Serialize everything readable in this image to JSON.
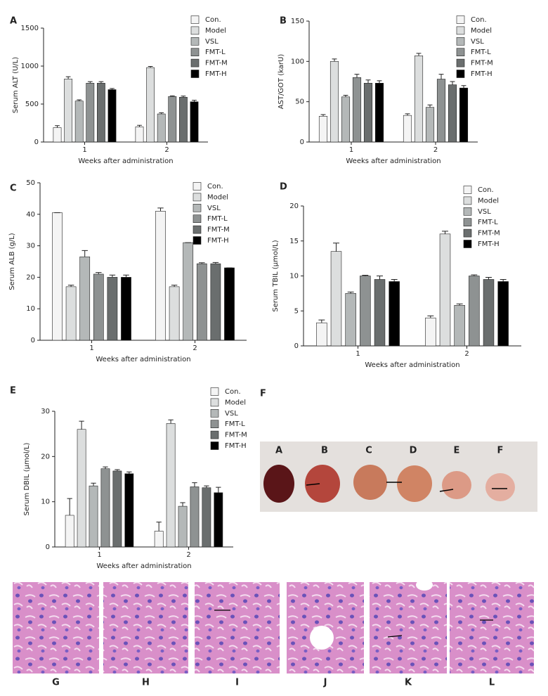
{
  "chart_data": [
    {
      "type": "bar",
      "panel": "A",
      "ylabel": "Serum ALT (U/L)",
      "xlabel": "Weeks after administration",
      "categories": [
        "1",
        "2"
      ],
      "ylim": [
        0,
        1500
      ],
      "yticks": [
        0,
        500,
        1000,
        1500
      ],
      "series": [
        {
          "name": "Con.",
          "color": "#f4f4f4",
          "values": [
            190,
            200
          ],
          "errors": [
            25,
            20
          ]
        },
        {
          "name": "Model",
          "color": "#dcdede",
          "values": [
            830,
            980
          ],
          "errors": [
            30,
            15
          ]
        },
        {
          "name": "VSL",
          "color": "#b4b8b8",
          "values": [
            540,
            370
          ],
          "errors": [
            15,
            15
          ]
        },
        {
          "name": "FMT-L",
          "color": "#8e9292",
          "values": [
            775,
            600
          ],
          "errors": [
            20,
            8
          ]
        },
        {
          "name": "FMT-M",
          "color": "#6a6e6e",
          "values": [
            775,
            590
          ],
          "errors": [
            20,
            15
          ]
        },
        {
          "name": "FMT-H",
          "color": "#000000",
          "values": [
            690,
            530
          ],
          "errors": [
            15,
            20
          ]
        }
      ]
    },
    {
      "type": "bar",
      "panel": "B",
      "ylabel": "AST/GOT (karU)",
      "xlabel": "Weeks after administration",
      "categories": [
        "1",
        "2"
      ],
      "ylim": [
        0,
        150
      ],
      "yticks": [
        0,
        50,
        100,
        150
      ],
      "series": [
        {
          "name": "Con.",
          "color": "#f4f4f4",
          "values": [
            32,
            33
          ],
          "errors": [
            2,
            2
          ]
        },
        {
          "name": "Model",
          "color": "#dcdede",
          "values": [
            100,
            107
          ],
          "errors": [
            3,
            3
          ]
        },
        {
          "name": "VSL",
          "color": "#b4b8b8",
          "values": [
            56,
            43
          ],
          "errors": [
            2,
            3
          ]
        },
        {
          "name": "FMT-L",
          "color": "#8e9292",
          "values": [
            80,
            78
          ],
          "errors": [
            4,
            6
          ]
        },
        {
          "name": "FMT-M",
          "color": "#6a6e6e",
          "values": [
            73,
            71
          ],
          "errors": [
            4,
            4
          ]
        },
        {
          "name": "FMT-H",
          "color": "#000000",
          "values": [
            73,
            67
          ],
          "errors": [
            3,
            3
          ]
        }
      ]
    },
    {
      "type": "bar",
      "panel": "C",
      "ylabel": "Serum ALB (g/L)",
      "xlabel": "Weeks after administration",
      "categories": [
        "1",
        "2"
      ],
      "ylim": [
        0,
        50
      ],
      "yticks": [
        0,
        10,
        20,
        30,
        40,
        50
      ],
      "series": [
        {
          "name": "Con.",
          "color": "#f4f4f4",
          "values": [
            40.5,
            41
          ],
          "errors": [
            0,
            1
          ]
        },
        {
          "name": "Model",
          "color": "#dcdede",
          "values": [
            17,
            17
          ],
          "errors": [
            0.5,
            0.5
          ]
        },
        {
          "name": "VSL",
          "color": "#b4b8b8",
          "values": [
            26.5,
            31
          ],
          "errors": [
            2,
            0
          ]
        },
        {
          "name": "FMT-L",
          "color": "#8e9292",
          "values": [
            21,
            24.3
          ],
          "errors": [
            0.5,
            0.3
          ]
        },
        {
          "name": "FMT-M",
          "color": "#6a6e6e",
          "values": [
            20,
            24.3
          ],
          "errors": [
            0.7,
            0.4
          ]
        },
        {
          "name": "FMT-H",
          "color": "#000000",
          "values": [
            20,
            23
          ],
          "errors": [
            0.7,
            0
          ]
        }
      ]
    },
    {
      "type": "bar",
      "panel": "D",
      "ylabel": "Serum TBIL (μmol/L)",
      "xlabel": "Weeks after administration",
      "categories": [
        "1",
        "2"
      ],
      "ylim": [
        0,
        20
      ],
      "yticks": [
        0,
        5,
        10,
        15,
        20
      ],
      "series": [
        {
          "name": "Con.",
          "color": "#f4f4f4",
          "values": [
            3.3,
            4
          ],
          "errors": [
            0.4,
            0.3
          ]
        },
        {
          "name": "Model",
          "color": "#dcdede",
          "values": [
            13.5,
            16
          ],
          "errors": [
            1.2,
            0.4
          ]
        },
        {
          "name": "VSL",
          "color": "#b4b8b8",
          "values": [
            7.5,
            5.8
          ],
          "errors": [
            0.2,
            0.2
          ]
        },
        {
          "name": "FMT-L",
          "color": "#8e9292",
          "values": [
            10,
            10
          ],
          "errors": [
            0.1,
            0.15
          ]
        },
        {
          "name": "FMT-M",
          "color": "#6a6e6e",
          "values": [
            9.5,
            9.5
          ],
          "errors": [
            0.5,
            0.3
          ]
        },
        {
          "name": "FMT-H",
          "color": "#000000",
          "values": [
            9.2,
            9.2
          ],
          "errors": [
            0.3,
            0.3
          ]
        }
      ]
    },
    {
      "type": "bar",
      "panel": "E",
      "ylabel": "Serum DBIL (μmol/L)",
      "xlabel": "Weeks after administration",
      "categories": [
        "1",
        "2"
      ],
      "ylim": [
        0,
        30
      ],
      "yticks": [
        0,
        10,
        20,
        30
      ],
      "series": [
        {
          "name": "Con.",
          "color": "#f4f4f4",
          "values": [
            7,
            3.5
          ],
          "errors": [
            3.7,
            2
          ]
        },
        {
          "name": "Model",
          "color": "#dcdede",
          "values": [
            26,
            27.3
          ],
          "errors": [
            1.8,
            0.8
          ]
        },
        {
          "name": "VSL",
          "color": "#b4b8b8",
          "values": [
            13.5,
            9
          ],
          "errors": [
            0.6,
            0.8
          ]
        },
        {
          "name": "FMT-L",
          "color": "#8e9292",
          "values": [
            17.3,
            13.3
          ],
          "errors": [
            0.4,
            0.9
          ]
        },
        {
          "name": "FMT-M",
          "color": "#6a6e6e",
          "values": [
            16.8,
            13.1
          ],
          "errors": [
            0.3,
            0.4
          ]
        },
        {
          "name": "FMT-H",
          "color": "#000000",
          "values": [
            16.2,
            12
          ],
          "errors": [
            0.4,
            1.2
          ]
        }
      ]
    }
  ],
  "photo_panel": {
    "label": "F",
    "specimens": [
      "A",
      "B",
      "C",
      "D",
      "E",
      "F"
    ]
  },
  "histology": {
    "labels": [
      "G",
      "H",
      "I",
      "J",
      "K",
      "L"
    ]
  }
}
